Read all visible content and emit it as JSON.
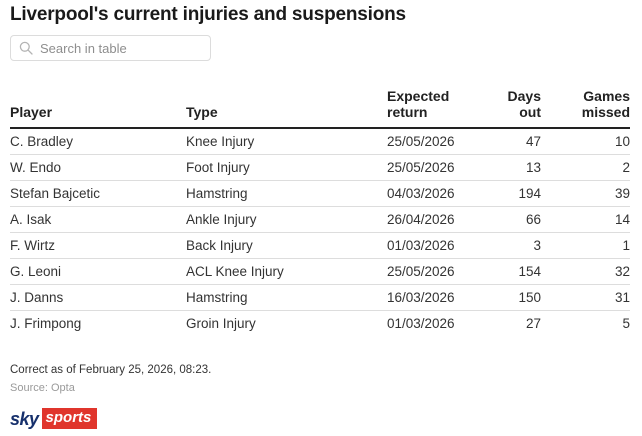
{
  "title": "Liverpool's current injuries and suspensions",
  "search": {
    "placeholder": "Search in table",
    "icon": "search-icon"
  },
  "table": {
    "columns": [
      "Player",
      "Type",
      "Expected return",
      "Days out",
      "Games missed"
    ],
    "rows": [
      [
        "C. Bradley",
        "Knee Injury",
        "25/05/2026",
        "47",
        "10"
      ],
      [
        "W. Endo",
        "Foot Injury",
        "25/05/2026",
        "13",
        "2"
      ],
      [
        "Stefan Bajcetic",
        "Hamstring",
        "04/03/2026",
        "194",
        "39"
      ],
      [
        "A. Isak",
        "Ankle Injury",
        "26/04/2026",
        "66",
        "14"
      ],
      [
        "F. Wirtz",
        "Back Injury",
        "01/03/2026",
        "3",
        "1"
      ],
      [
        "G. Leoni",
        "ACL Knee Injury",
        "25/05/2026",
        "154",
        "32"
      ],
      [
        "J. Danns",
        "Hamstring",
        "16/03/2026",
        "150",
        "31"
      ],
      [
        "J. Frimpong",
        "Groin Injury",
        "01/03/2026",
        "27",
        "5"
      ]
    ]
  },
  "footer": {
    "correct_as_of": "Correct as of February 25, 2026, 08:23.",
    "source": "Source: Opta"
  },
  "logo": {
    "sky": "sky",
    "sports": "sports"
  },
  "colors": {
    "header_rule": "#222222",
    "row_divider": "#dddddd",
    "sky_navy": "#16306c",
    "sports_red": "#e0352c"
  }
}
